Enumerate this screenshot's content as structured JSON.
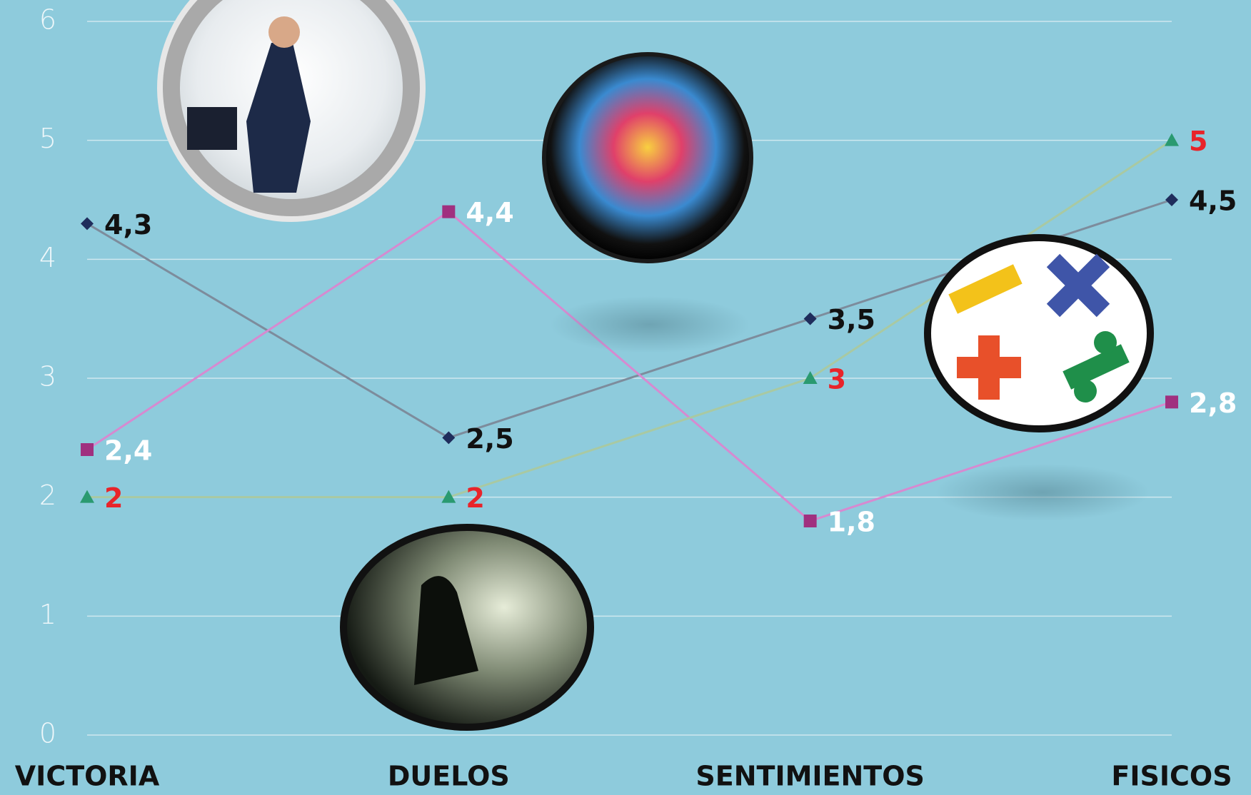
{
  "chart_data": {
    "type": "line",
    "categories": [
      "VICTORIA",
      "DUELOS",
      "SENTIMIENTOS",
      "FISICOS"
    ],
    "series": [
      {
        "color": "#1f2d5c",
        "line_color": "#7d8c9c",
        "label_color": "#111111",
        "marker": "diamond",
        "values": [
          4.3,
          2.5,
          3.5,
          4.5
        ],
        "value_labels": [
          "4,3",
          "2,5",
          "3,5",
          "4,5"
        ]
      },
      {
        "color": "#a0307f",
        "line_color": "#d68ad0",
        "label_color": "#ffffff",
        "marker": "square",
        "values": [
          2.4,
          4.4,
          1.8,
          2.8
        ],
        "value_labels": [
          "2,4",
          "4,4",
          "1,8",
          "2,8"
        ]
      },
      {
        "color": "#2a9a70",
        "line_color": "#a9c9a2",
        "label_color": "#e8242a",
        "marker": "triangle",
        "values": [
          2,
          2,
          3,
          5
        ]
      }
    ],
    "ylim": [
      0,
      6
    ],
    "yticks": [
      0,
      1,
      2,
      3,
      4,
      5,
      6
    ],
    "grid": true
  }
}
